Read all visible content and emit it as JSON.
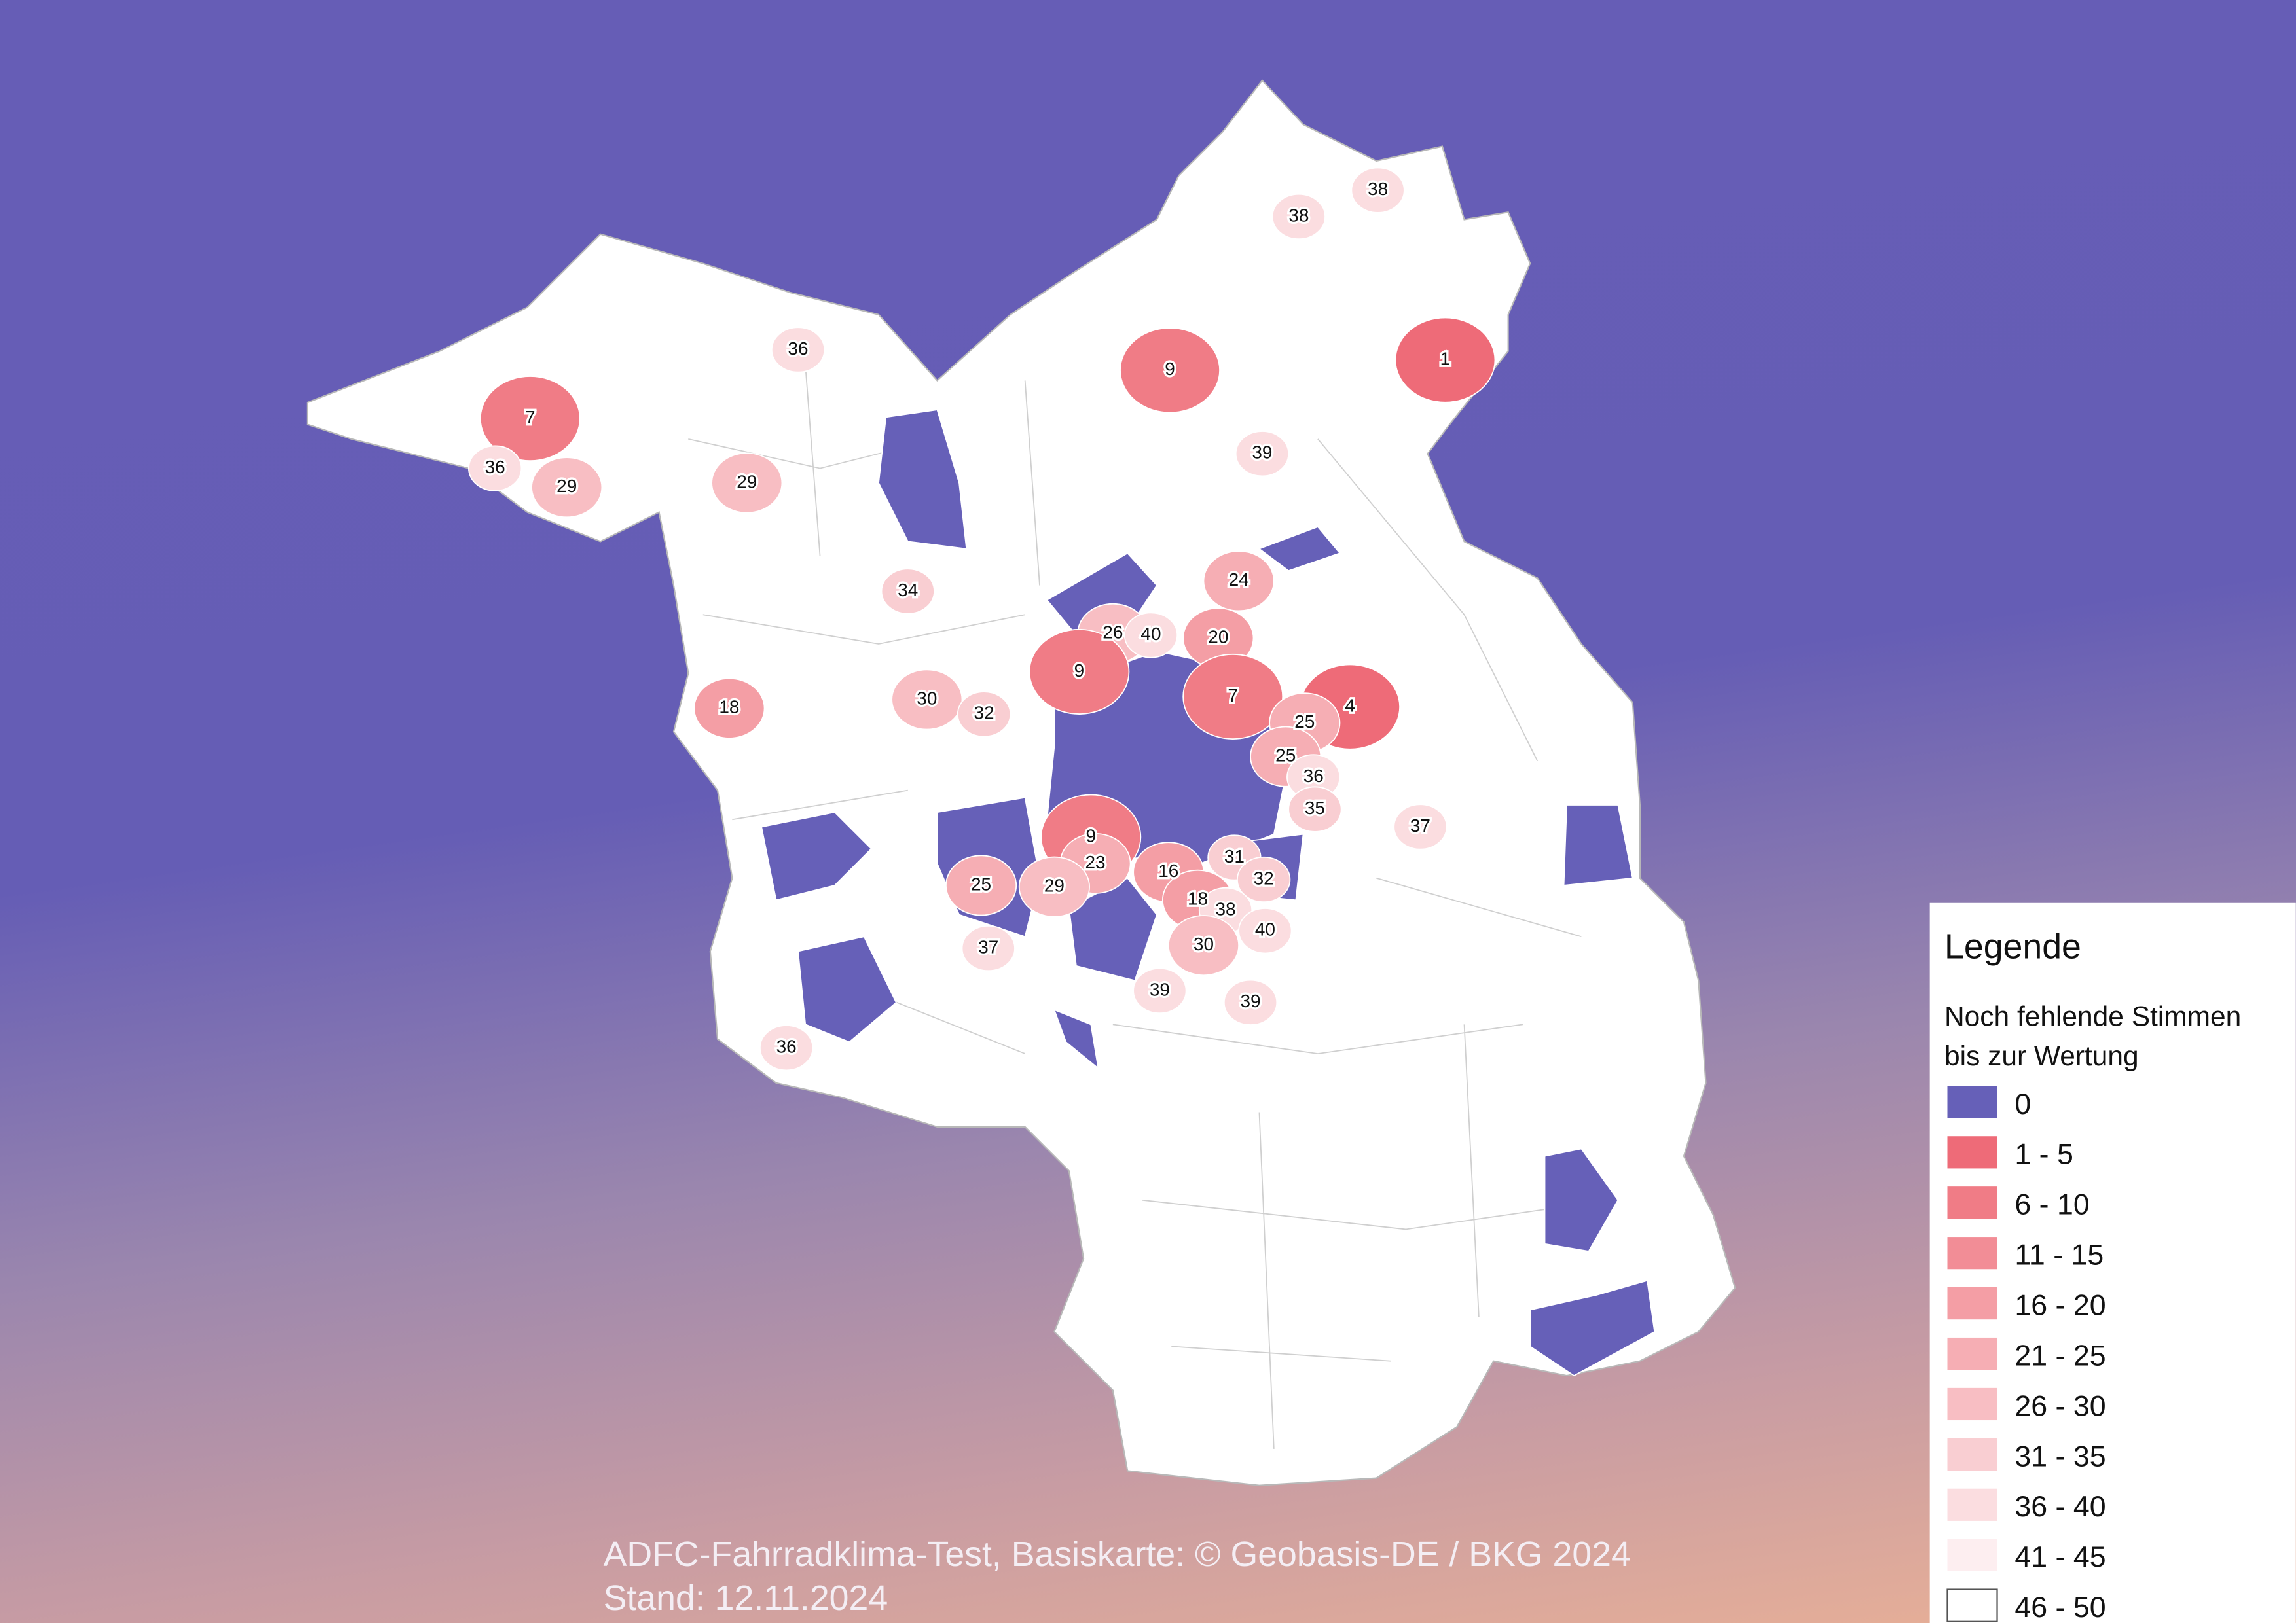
{
  "map": {
    "labels": [
      38,
      38,
      36,
      9,
      1,
      7,
      36,
      29,
      29,
      39,
      34,
      24,
      26,
      40,
      20,
      9,
      7,
      4,
      18,
      30,
      32,
      25,
      25,
      36,
      35,
      37,
      9,
      31,
      23,
      16,
      32,
      25,
      29,
      18,
      38,
      40,
      30,
      37,
      39,
      39,
      36
    ]
  },
  "legend": {
    "title": "Legende",
    "subtitle": [
      "Noch fehlende Stimmen",
      "bis zur Wertung"
    ],
    "items": [
      {
        "label": "0",
        "color": "#6660b8"
      },
      {
        "label": "1 - 5",
        "color": "#ee6b78"
      },
      {
        "label": "6 - 10",
        "color": "#f07c86"
      },
      {
        "label": "11 - 15",
        "color": "#f28d96"
      },
      {
        "label": "16 - 20",
        "color": "#f49ea5"
      },
      {
        "label": "21 - 25",
        "color": "#f6aeb4"
      },
      {
        "label": "26 - 30",
        "color": "#f8bec3"
      },
      {
        "label": "31 - 35",
        "color": "#f9ced2"
      },
      {
        "label": "36 - 40",
        "color": "#fbdde0"
      },
      {
        "label": "41 - 45",
        "color": "#fdeef0"
      },
      {
        "label": "46 - 50",
        "color": "#ffffff"
      }
    ]
  },
  "footer": [
    "ADFC-Fahrradklima-Test, Basiskarte:  ©  Geobasis-DE  /  BKG  2024",
    "Stand: 12.11.2024"
  ]
}
